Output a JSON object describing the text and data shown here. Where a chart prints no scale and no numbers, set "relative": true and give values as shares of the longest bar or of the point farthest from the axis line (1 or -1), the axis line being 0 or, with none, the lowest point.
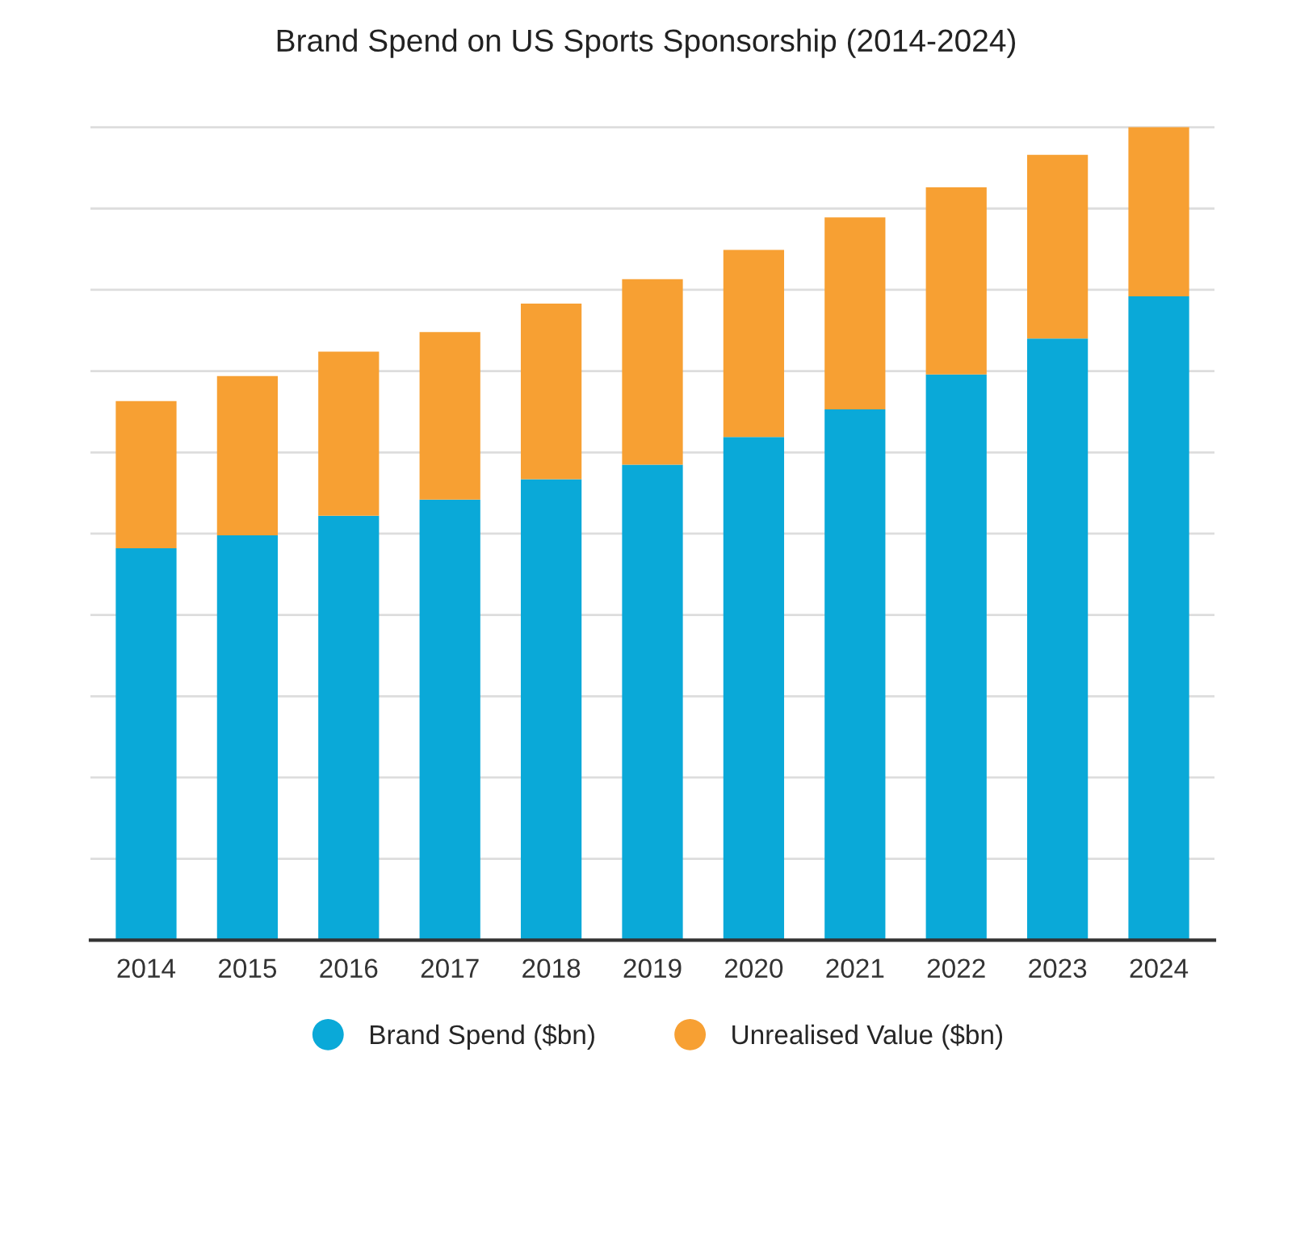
{
  "chart_data": {
    "type": "bar",
    "title": "Brand Spend on US Sports Sponsorship (2014-2024)",
    "categories": [
      "2014",
      "2015",
      "2016",
      "2017",
      "2018",
      "2019",
      "2020",
      "2021",
      "2022",
      "2023",
      "2024"
    ],
    "stacked": true,
    "relative": true,
    "grid": "y",
    "legend": "bottom",
    "series": [
      {
        "name": "Brand Spend ($bn)",
        "color": "#0aa9d8",
        "values": [
          0.482,
          0.498,
          0.522,
          0.542,
          0.567,
          0.585,
          0.619,
          0.653,
          0.696,
          0.74,
          0.792
        ]
      },
      {
        "name": "Unrealised Value ($bn)",
        "color": "#f7a033",
        "values": [
          0.181,
          0.196,
          0.202,
          0.206,
          0.216,
          0.228,
          0.23,
          0.236,
          0.23,
          0.226,
          0.208
        ]
      }
    ]
  }
}
